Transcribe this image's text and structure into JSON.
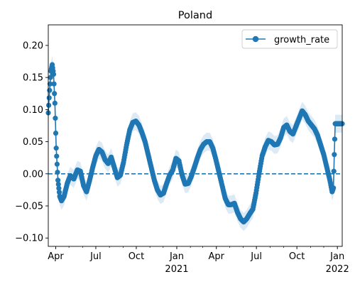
{
  "chart_data": {
    "type": "line",
    "title": "Poland",
    "xlabel": "",
    "ylabel": "",
    "x_range": [
      "2020-03-15",
      "2022-01-12"
    ],
    "ylim": [
      -0.113,
      0.232
    ],
    "y_ticks": [
      -0.1,
      -0.05,
      0.0,
      0.05,
      0.1,
      0.15,
      0.2
    ],
    "y_tick_labels": [
      "−0.10",
      "−0.05",
      "0.00",
      "0.05",
      "0.10",
      "0.15",
      "0.20"
    ],
    "x_ticks": [
      {
        "date": "2020-04-01",
        "label": "Apr",
        "sublabel": ""
      },
      {
        "date": "2020-07-01",
        "label": "Jul",
        "sublabel": ""
      },
      {
        "date": "2020-10-01",
        "label": "Oct",
        "sublabel": ""
      },
      {
        "date": "2021-01-01",
        "label": "Jan",
        "sublabel": "2021"
      },
      {
        "date": "2021-04-01",
        "label": "Apr",
        "sublabel": ""
      },
      {
        "date": "2021-07-01",
        "label": "Jul",
        "sublabel": ""
      },
      {
        "date": "2021-10-01",
        "label": "Oct",
        "sublabel": ""
      },
      {
        "date": "2022-01-01",
        "label": "Jan",
        "sublabel": "2022"
      }
    ],
    "reference_line": {
      "y": 0.0,
      "style": "dashed",
      "color": "#1f77b4"
    },
    "legend": {
      "position": "top-right"
    },
    "series": [
      {
        "name": "growth_rate",
        "color": "#1f77b4",
        "band_color": "#dceaf6",
        "marker": "circle",
        "band_width": 0.014,
        "points": [
          [
            "2020-03-15",
            0.095
          ],
          [
            "2020-03-18",
            0.13
          ],
          [
            "2020-03-21",
            0.16
          ],
          [
            "2020-03-24",
            0.17
          ],
          [
            "2020-03-27",
            0.155
          ],
          [
            "2020-03-30",
            0.11
          ],
          [
            "2020-04-02",
            0.04
          ],
          [
            "2020-04-06",
            -0.01
          ],
          [
            "2020-04-10",
            -0.035
          ],
          [
            "2020-04-14",
            -0.042
          ],
          [
            "2020-04-20",
            -0.035
          ],
          [
            "2020-04-27",
            -0.015
          ],
          [
            "2020-05-04",
            -0.003
          ],
          [
            "2020-05-12",
            -0.008
          ],
          [
            "2020-05-20",
            0.006
          ],
          [
            "2020-05-27",
            0.004
          ],
          [
            "2020-06-03",
            -0.018
          ],
          [
            "2020-06-10",
            -0.028
          ],
          [
            "2020-06-17",
            -0.01
          ],
          [
            "2020-06-24",
            0.01
          ],
          [
            "2020-07-01",
            0.028
          ],
          [
            "2020-07-08",
            0.038
          ],
          [
            "2020-07-15",
            0.034
          ],
          [
            "2020-07-22",
            0.022
          ],
          [
            "2020-07-29",
            0.016
          ],
          [
            "2020-08-05",
            0.026
          ],
          [
            "2020-08-12",
            0.01
          ],
          [
            "2020-08-19",
            -0.006
          ],
          [
            "2020-08-26",
            -0.002
          ],
          [
            "2020-09-02",
            0.018
          ],
          [
            "2020-09-09",
            0.045
          ],
          [
            "2020-09-16",
            0.068
          ],
          [
            "2020-09-23",
            0.08
          ],
          [
            "2020-09-30",
            0.082
          ],
          [
            "2020-10-07",
            0.076
          ],
          [
            "2020-10-14",
            0.064
          ],
          [
            "2020-10-21",
            0.05
          ],
          [
            "2020-10-28",
            0.03
          ],
          [
            "2020-11-04",
            0.01
          ],
          [
            "2020-11-11",
            -0.01
          ],
          [
            "2020-11-18",
            -0.025
          ],
          [
            "2020-11-25",
            -0.033
          ],
          [
            "2020-12-02",
            -0.03
          ],
          [
            "2020-12-09",
            -0.015
          ],
          [
            "2020-12-16",
            -0.002
          ],
          [
            "2020-12-23",
            0.006
          ],
          [
            "2020-12-30",
            0.024
          ],
          [
            "2021-01-06",
            0.02
          ],
          [
            "2021-01-13",
            -0.002
          ],
          [
            "2021-01-20",
            -0.016
          ],
          [
            "2021-01-27",
            -0.015
          ],
          [
            "2021-02-03",
            -0.004
          ],
          [
            "2021-02-10",
            0.01
          ],
          [
            "2021-02-17",
            0.025
          ],
          [
            "2021-02-24",
            0.038
          ],
          [
            "2021-03-03",
            0.046
          ],
          [
            "2021-03-10",
            0.05
          ],
          [
            "2021-03-17",
            0.05
          ],
          [
            "2021-03-24",
            0.04
          ],
          [
            "2021-03-31",
            0.022
          ],
          [
            "2021-04-07",
            0.002
          ],
          [
            "2021-04-14",
            -0.018
          ],
          [
            "2021-04-21",
            -0.038
          ],
          [
            "2021-04-28",
            -0.048
          ],
          [
            "2021-05-05",
            -0.048
          ],
          [
            "2021-05-12",
            -0.046
          ],
          [
            "2021-05-19",
            -0.06
          ],
          [
            "2021-05-26",
            -0.07
          ],
          [
            "2021-06-02",
            -0.075
          ],
          [
            "2021-06-09",
            -0.07
          ],
          [
            "2021-06-16",
            -0.062
          ],
          [
            "2021-06-23",
            -0.055
          ],
          [
            "2021-06-30",
            -0.03
          ],
          [
            "2021-07-07",
            0.0
          ],
          [
            "2021-07-14",
            0.028
          ],
          [
            "2021-07-21",
            0.042
          ],
          [
            "2021-07-28",
            0.052
          ],
          [
            "2021-08-04",
            0.05
          ],
          [
            "2021-08-11",
            0.045
          ],
          [
            "2021-08-18",
            0.046
          ],
          [
            "2021-08-25",
            0.056
          ],
          [
            "2021-09-01",
            0.072
          ],
          [
            "2021-09-08",
            0.076
          ],
          [
            "2021-09-15",
            0.066
          ],
          [
            "2021-09-22",
            0.062
          ],
          [
            "2021-09-29",
            0.074
          ],
          [
            "2021-10-06",
            0.086
          ],
          [
            "2021-10-13",
            0.098
          ],
          [
            "2021-10-20",
            0.092
          ],
          [
            "2021-10-27",
            0.082
          ],
          [
            "2021-11-03",
            0.076
          ],
          [
            "2021-11-10",
            0.07
          ],
          [
            "2021-11-17",
            0.06
          ],
          [
            "2021-11-24",
            0.045
          ],
          [
            "2021-12-01",
            0.03
          ],
          [
            "2021-12-08",
            0.01
          ],
          [
            "2021-12-15",
            -0.01
          ],
          [
            "2021-12-20",
            -0.028
          ],
          [
            "2021-12-23",
            -0.022
          ],
          [
            "2021-12-25",
            0.03
          ],
          [
            "2021-12-27",
            0.078
          ],
          [
            "2021-12-31",
            0.078
          ],
          [
            "2022-01-05",
            0.078
          ],
          [
            "2022-01-12",
            0.078
          ]
        ]
      }
    ]
  }
}
